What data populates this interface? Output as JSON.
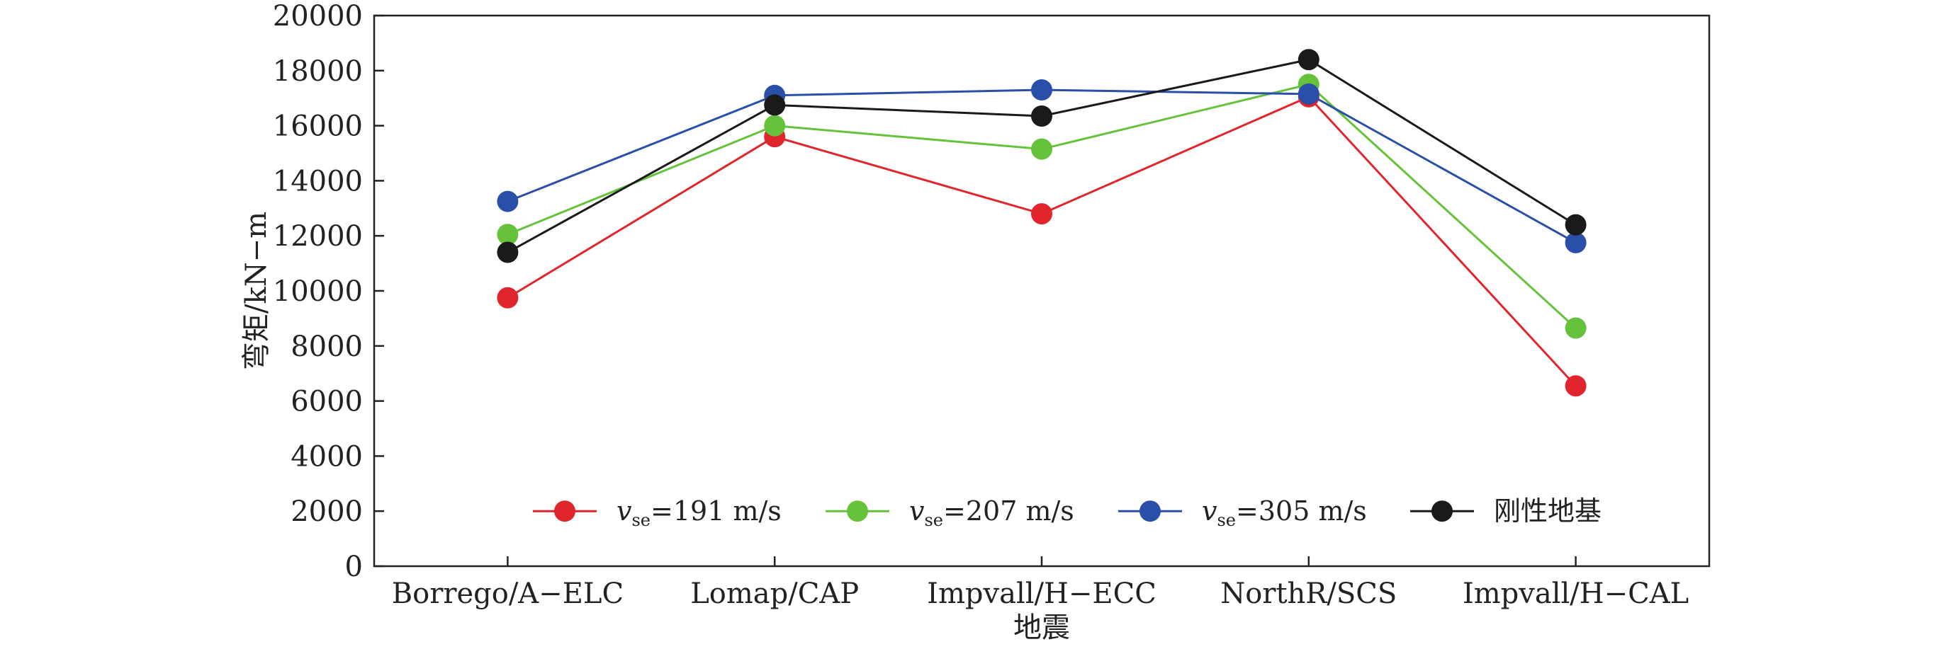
{
  "chart_data": {
    "type": "line",
    "title": "",
    "xlabel": "地震",
    "ylabel": "弯矩/kN−m",
    "categories": [
      "Borrego/A−ELC",
      "Lomap/CAP",
      "Impvall/H−ECC",
      "NorthR/SCS",
      "Impvall/H−CAL"
    ],
    "ylim": [
      0,
      20000
    ],
    "yticks": [
      0,
      2000,
      4000,
      6000,
      8000,
      10000,
      12000,
      14000,
      16000,
      18000,
      20000
    ],
    "grid": false,
    "legend_position": "bottom-inside",
    "series": [
      {
        "name": "vse=191 m/s",
        "legend_var": "v",
        "legend_sub": "se",
        "legend_rest": "=191 m/s",
        "color": "#e0262c",
        "values": [
          9750,
          15600,
          12800,
          17050,
          6550
        ]
      },
      {
        "name": "vse=207 m/s",
        "legend_var": "v",
        "legend_sub": "se",
        "legend_rest": "=207 m/s",
        "color": "#66c23a",
        "values": [
          12050,
          16000,
          15150,
          17500,
          8650
        ]
      },
      {
        "name": "vse=305 m/s",
        "legend_var": "v",
        "legend_sub": "se",
        "legend_rest": "=305 m/s",
        "color": "#2a4fa8",
        "values": [
          13250,
          17100,
          17300,
          17150,
          11750
        ]
      },
      {
        "name": "刚性地基",
        "legend_var": "",
        "legend_sub": "",
        "legend_rest": "刚性地基",
        "color": "#1a1a1a",
        "values": [
          11400,
          16750,
          16350,
          18400,
          12400
        ]
      }
    ]
  }
}
